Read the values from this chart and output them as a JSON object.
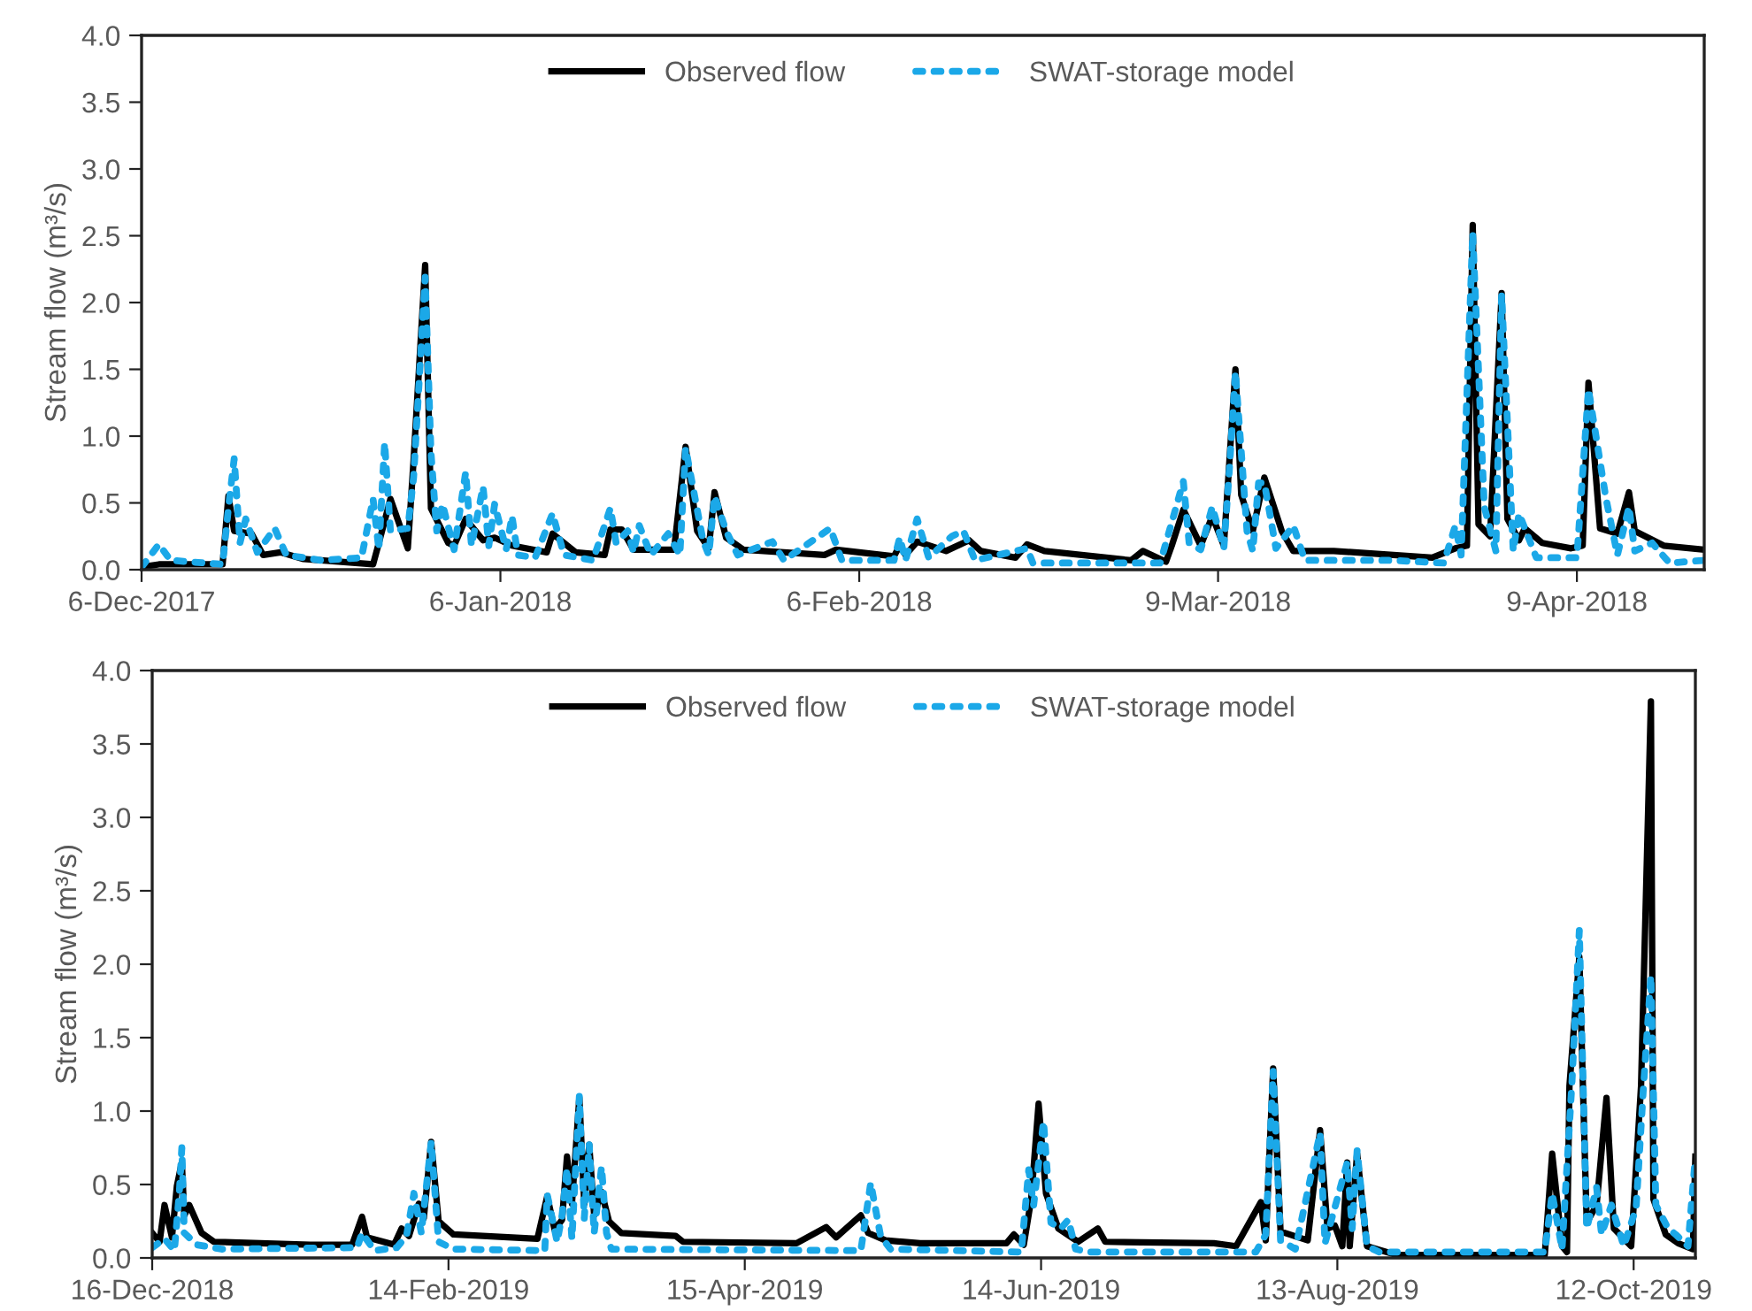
{
  "chart_data": [
    {
      "type": "line",
      "ylabel": "Stream flow (m³/s)",
      "legend": "top",
      "grid": false,
      "xlim": [
        "2017-12-06",
        "2018-04-20"
      ],
      "xticks": [
        {
          "value": "2017-12-06",
          "label": "6-Dec-2017"
        },
        {
          "value": "2018-01-06",
          "label": "6-Jan-2018"
        },
        {
          "value": "2018-02-06",
          "label": "6-Feb-2018"
        },
        {
          "value": "2018-03-09",
          "label": "9-Mar-2018"
        },
        {
          "value": "2018-04-09",
          "label": "9-Apr-2018"
        }
      ],
      "ylim": [
        0,
        4
      ],
      "yticks": [
        {
          "value": 0,
          "label": "0.0"
        },
        {
          "value": 0.5,
          "label": "0.5"
        },
        {
          "value": 1,
          "label": "1.0"
        },
        {
          "value": 1.5,
          "label": "1.5"
        },
        {
          "value": 2,
          "label": "2.0"
        },
        {
          "value": 2.5,
          "label": "2.5"
        },
        {
          "value": 3,
          "label": "3.0"
        },
        {
          "value": 3.5,
          "label": "3.5"
        },
        {
          "value": 4,
          "label": "4.0"
        }
      ],
      "series": [
        {
          "name": "Observed flow",
          "color": "#000000",
          "line_style": "solid",
          "x": [
            "2017-12-06",
            "2017-12-07T12:00",
            "2017-12-13",
            "2017-12-13T12:00",
            "2017-12-14",
            "2017-12-15T12:00",
            "2017-12-16T12:00",
            "2017-12-18",
            "2017-12-20",
            "2017-12-26",
            "2017-12-26T12:00",
            "2017-12-27T12:00",
            "2017-12-29",
            "2017-12-29T12:00",
            "2017-12-30T12:00",
            "2017-12-31",
            "2018-01-01T12:00",
            "2018-01-02",
            "2018-01-03",
            "2018-01-04T12:00",
            "2018-01-05T12:00",
            "2018-01-07",
            "2018-01-10",
            "2018-01-10T12:00",
            "2018-01-12T12:00",
            "2018-01-15",
            "2018-01-15T12:00",
            "2018-01-16T12:00",
            "2018-01-17T12:00",
            "2018-01-21",
            "2018-01-22",
            "2018-01-23",
            "2018-01-24",
            "2018-01-24T12:00",
            "2018-01-25T12:00",
            "2018-01-27",
            "2018-02-03",
            "2018-02-04",
            "2018-02-09",
            "2018-02-09T12:00",
            "2018-02-10",
            "2018-02-11",
            "2018-02-13T12:00",
            "2018-02-15T12:00",
            "2018-02-16T12:00",
            "2018-02-19T12:00",
            "2018-02-20T12:00",
            "2018-02-22",
            "2018-03-01T12:00",
            "2018-03-02T12:00",
            "2018-03-04T12:00",
            "2018-03-05",
            "2018-03-06",
            "2018-03-07T12:00",
            "2018-03-08T12:00",
            "2018-03-09T12:00",
            "2018-03-10T12:00",
            "2018-03-11",
            "2018-03-12",
            "2018-03-12T12:00",
            "2018-03-13",
            "2018-03-14T12:00",
            "2018-03-15T12:00",
            "2018-03-19",
            "2018-03-27T12:00",
            "2018-03-29T12:00",
            "2018-03-30T12:00",
            "2018-03-31",
            "2018-03-31T12:00",
            "2018-04-01T12:00",
            "2018-04-02T12:00",
            "2018-04-03",
            "2018-04-04",
            "2018-04-04T12:00",
            "2018-04-06",
            "2018-04-08T12:00",
            "2018-04-09T12:00",
            "2018-04-10",
            "2018-04-11",
            "2018-04-12T12:00",
            "2018-04-13T12:00",
            "2018-04-14",
            "2018-04-16T12:00",
            "2018-04-20"
          ],
          "values": [
            0.02,
            0.04,
            0.04,
            0.55,
            0.29,
            0.27,
            0.11,
            0.13,
            0.08,
            0.04,
            0.2,
            0.53,
            0.16,
            0.82,
            2.28,
            0.46,
            0.2,
            0.18,
            0.38,
            0.22,
            0.24,
            0.18,
            0.13,
            0.27,
            0.13,
            0.11,
            0.3,
            0.3,
            0.15,
            0.15,
            0.92,
            0.29,
            0.16,
            0.58,
            0.24,
            0.15,
            0.11,
            0.15,
            0.1,
            0.18,
            0.11,
            0.21,
            0.14,
            0.22,
            0.14,
            0.09,
            0.19,
            0.14,
            0.07,
            0.14,
            0.06,
            0.18,
            0.45,
            0.18,
            0.4,
            0.18,
            1.5,
            0.56,
            0.29,
            0.49,
            0.69,
            0.29,
            0.14,
            0.14,
            0.09,
            0.16,
            0.18,
            2.58,
            0.34,
            0.25,
            2.07,
            0.38,
            0.22,
            0.31,
            0.2,
            0.16,
            0.18,
            1.4,
            0.31,
            0.27,
            0.58,
            0.29,
            0.18,
            0.15
          ]
        },
        {
          "name": "SWAT-storage model",
          "color": "#1ba8e8",
          "line_style": "dotted",
          "x": [
            "2017-12-06",
            "2017-12-07T12:00",
            "2017-12-08T12:00",
            "2017-12-13",
            "2017-12-13T12:00",
            "2017-12-14",
            "2017-12-14T12:00",
            "2017-12-15",
            "2017-12-16",
            "2017-12-17T12:00",
            "2017-12-18T12:00",
            "2017-12-21T12:00",
            "2017-12-25",
            "2017-12-26",
            "2017-12-26T12:00",
            "2017-12-27",
            "2017-12-27T12:00",
            "2017-12-29",
            "2017-12-29T12:00",
            "2017-12-30T12:00",
            "2017-12-31",
            "2017-12-31T12:00",
            "2018-01-01",
            "2018-01-02",
            "2018-01-03",
            "2018-01-03T12:00",
            "2018-01-04T12:00",
            "2018-01-05",
            "2018-01-05T12:00",
            "2018-01-06T12:00",
            "2018-01-07",
            "2018-01-07T12:00",
            "2018-01-09",
            "2018-01-10T12:00",
            "2018-01-11T12:00",
            "2018-01-14",
            "2018-01-15T12:00",
            "2018-01-16",
            "2018-01-17",
            "2018-01-17T12:00",
            "2018-01-18",
            "2018-01-19",
            "2018-01-20T12:00",
            "2018-01-21T12:00",
            "2018-01-22",
            "2018-01-23T12:00",
            "2018-01-24",
            "2018-01-24T12:00",
            "2018-01-25T12:00",
            "2018-01-26T12:00",
            "2018-01-29T12:00",
            "2018-01-30T12:00",
            "2018-02-03T12:00",
            "2018-02-04T12:00",
            "2018-02-09",
            "2018-02-09T12:00",
            "2018-02-10",
            "2018-02-11",
            "2018-02-12",
            "2018-02-14",
            "2018-02-15",
            "2018-02-16",
            "2018-02-20T12:00",
            "2018-02-21",
            "2018-03-04",
            "2018-03-06",
            "2018-03-06T12:00",
            "2018-03-07T12:00",
            "2018-03-08T12:00",
            "2018-03-09T12:00",
            "2018-03-10",
            "2018-03-10T12:00",
            "2018-03-11T12:00",
            "2018-03-12",
            "2018-03-12T12:00",
            "2018-03-13",
            "2018-03-14",
            "2018-03-15T12:00",
            "2018-03-16T12:00",
            "2018-03-24",
            "2018-03-28T12:00",
            "2018-03-29T12:00",
            "2018-03-30",
            "2018-03-31",
            "2018-04-01",
            "2018-04-02",
            "2018-04-02T12:00",
            "2018-04-03T12:00",
            "2018-04-04",
            "2018-04-05T12:00",
            "2018-04-09",
            "2018-04-10",
            "2018-04-11T12:00",
            "2018-04-12T12:00",
            "2018-04-13T12:00",
            "2018-04-14",
            "2018-04-15T12:00",
            "2018-04-17",
            "2018-04-20"
          ],
          "values": [
            0.02,
            0.19,
            0.07,
            0.04,
            0.46,
            0.83,
            0.2,
            0.38,
            0.13,
            0.31,
            0.11,
            0.07,
            0.09,
            0.53,
            0.15,
            0.95,
            0.29,
            0.31,
            0.69,
            2.19,
            0.88,
            0.29,
            0.49,
            0.15,
            0.73,
            0.18,
            0.62,
            0.18,
            0.49,
            0.15,
            0.4,
            0.11,
            0.09,
            0.42,
            0.11,
            0.07,
            0.46,
            0.2,
            0.29,
            0.13,
            0.33,
            0.11,
            0.27,
            0.11,
            0.91,
            0.22,
            0.11,
            0.55,
            0.29,
            0.11,
            0.21,
            0.07,
            0.31,
            0.07,
            0.07,
            0.24,
            0.07,
            0.38,
            0.09,
            0.25,
            0.29,
            0.07,
            0.16,
            0.05,
            0.05,
            0.66,
            0.2,
            0.15,
            0.47,
            0.16,
            0.78,
            1.48,
            0.29,
            0.14,
            0.65,
            0.65,
            0.16,
            0.33,
            0.07,
            0.07,
            0.05,
            0.33,
            0.11,
            2.52,
            0.47,
            0.14,
            2.06,
            0.14,
            0.42,
            0.09,
            0.09,
            1.35,
            0.54,
            0.11,
            0.47,
            0.14,
            0.2,
            0.05,
            0.07
          ]
        }
      ]
    },
    {
      "type": "line",
      "ylabel": "Stream flow (m³/s)",
      "legend": "top",
      "grid": false,
      "xlim": [
        "2018-12-16",
        "2019-10-24T12:00"
      ],
      "xticks": [
        {
          "value": "2018-12-16",
          "label": "16-Dec-2018"
        },
        {
          "value": "2019-02-14",
          "label": "14-Feb-2019"
        },
        {
          "value": "2019-04-15",
          "label": "15-Apr-2019"
        },
        {
          "value": "2019-06-14",
          "label": "14-Jun-2019"
        },
        {
          "value": "2019-08-13",
          "label": "13-Aug-2019"
        },
        {
          "value": "2019-10-12",
          "label": "12-Oct-2019"
        }
      ],
      "ylim": [
        0,
        4
      ],
      "yticks": [
        {
          "value": 0,
          "label": "0.0"
        },
        {
          "value": 0.5,
          "label": "0.5"
        },
        {
          "value": 1,
          "label": "1.0"
        },
        {
          "value": 1.5,
          "label": "1.5"
        },
        {
          "value": 2,
          "label": "2.0"
        },
        {
          "value": 2.5,
          "label": "2.5"
        },
        {
          "value": 3,
          "label": "3.0"
        },
        {
          "value": 3.5,
          "label": "3.5"
        },
        {
          "value": 4,
          "label": "4.0"
        }
      ],
      "series": [
        {
          "name": "Observed flow",
          "color": "#000000",
          "line_style": "solid",
          "x": [
            "2018-12-16",
            "2018-12-17T12:00",
            "2018-12-18T12:00",
            "2018-12-20",
            "2018-12-21",
            "2018-12-22",
            "2018-12-22T12:00",
            "2018-12-23T12:00",
            "2018-12-26",
            "2018-12-28T12:00",
            "2019-01-17",
            "2019-01-25T12:00",
            "2019-01-27T12:00",
            "2019-01-28T12:00",
            "2019-02-03",
            "2019-02-04T12:00",
            "2019-02-06",
            "2019-02-08",
            "2019-02-09",
            "2019-02-10T12:00",
            "2019-02-12",
            "2019-02-15",
            "2019-03-04",
            "2019-03-06",
            "2019-03-07T12:00",
            "2019-03-09",
            "2019-03-10",
            "2019-03-11",
            "2019-03-12T12:00",
            "2019-03-13T12:00",
            "2019-03-14T12:00",
            "2019-03-15T12:00",
            "2019-03-17",
            "2019-03-18T12:00",
            "2019-03-21",
            "2019-04-01",
            "2019-04-02T12:00",
            "2019-04-25T12:00",
            "2019-05-01T12:00",
            "2019-05-03T12:00",
            "2019-05-08T12:00",
            "2019-05-10",
            "2019-05-13T12:00",
            "2019-05-20T12:00",
            "2019-06-07",
            "2019-06-08T12:00",
            "2019-06-10T12:00",
            "2019-06-12",
            "2019-06-13T12:00",
            "2019-06-15",
            "2019-06-17T12:00",
            "2019-06-21T12:00",
            "2019-06-25T12:00",
            "2019-06-27",
            "2019-07-19",
            "2019-07-23T12:00",
            "2019-07-28T12:00",
            "2019-07-29T12:00",
            "2019-07-31",
            "2019-08-01T12:00",
            "2019-08-07",
            "2019-08-09T12:00",
            "2019-08-11",
            "2019-08-12T12:00",
            "2019-08-14",
            "2019-08-15",
            "2019-08-15T12:00",
            "2019-08-17",
            "2019-08-19",
            "2019-08-25",
            "2019-09-24",
            "2019-09-25T12:00",
            "2019-09-27T12:00",
            "2019-09-28T12:00",
            "2019-09-29",
            "2019-10-01",
            "2019-10-02T12:00",
            "2019-10-04T12:00",
            "2019-10-06T12:00",
            "2019-10-08",
            "2019-10-11T12:00",
            "2019-10-13T12:00",
            "2019-10-15T12:00",
            "2019-10-16",
            "2019-10-18T12:00",
            "2019-10-21",
            "2019-10-24",
            "2019-10-24T12:00"
          ],
          "values": [
            0.17,
            0.11,
            0.36,
            0.14,
            0.49,
            0.65,
            0.29,
            0.36,
            0.17,
            0.11,
            0.09,
            0.09,
            0.28,
            0.14,
            0.09,
            0.2,
            0.15,
            0.37,
            0.27,
            0.79,
            0.25,
            0.16,
            0.13,
            0.42,
            0.19,
            0.26,
            0.69,
            0.37,
            1.09,
            0.37,
            0.77,
            0.29,
            0.45,
            0.25,
            0.17,
            0.15,
            0.11,
            0.1,
            0.21,
            0.14,
            0.29,
            0.17,
            0.12,
            0.1,
            0.1,
            0.16,
            0.09,
            0.4,
            1.05,
            0.44,
            0.2,
            0.11,
            0.2,
            0.11,
            0.1,
            0.08,
            0.38,
            0.12,
            1.29,
            0.18,
            0.12,
            0.87,
            0.2,
            0.22,
            0.08,
            0.65,
            0.08,
            0.71,
            0.08,
            0.02,
            0.02,
            0.71,
            0.08,
            0.04,
            1.17,
            2.05,
            0.24,
            0.36,
            1.09,
            0.2,
            0.08,
            1.17,
            3.79,
            0.4,
            0.16,
            0.1,
            0.06,
            0.69
          ]
        },
        {
          "name": "SWAT-storage model",
          "color": "#1ba8e8",
          "line_style": "dotted",
          "x": [
            "2018-12-16",
            "2018-12-18T12:00",
            "2018-12-20T12:00",
            "2018-12-21T12:00",
            "2018-12-22",
            "2018-12-22T12:00",
            "2018-12-25",
            "2018-12-30",
            "2019-01-26T12:00",
            "2019-01-27T12:00",
            "2019-01-30",
            "2019-02-03T12:00",
            "2019-02-05T12:00",
            "2019-02-07",
            "2019-02-08T12:00",
            "2019-02-10T12:00",
            "2019-02-12",
            "2019-02-15",
            "2019-03-05T12:00",
            "2019-03-06",
            "2019-03-08",
            "2019-03-09",
            "2019-03-10",
            "2019-03-11",
            "2019-03-12T12:00",
            "2019-03-13T12:00",
            "2019-03-14T12:00",
            "2019-03-15T12:00",
            "2019-03-17",
            "2019-03-18",
            "2019-03-19",
            "2019-05-08T12:00",
            "2019-05-10T12:00",
            "2019-05-12T12:00",
            "2019-05-14T12:00",
            "2019-06-10",
            "2019-06-11T12:00",
            "2019-06-12T12:00",
            "2019-06-14T12:00",
            "2019-06-16",
            "2019-06-18",
            "2019-06-19T12:00",
            "2019-06-21",
            "2019-06-24",
            "2019-07-27T12:00",
            "2019-07-29T12:00",
            "2019-07-31",
            "2019-08-01T12:00",
            "2019-08-04T12:00",
            "2019-08-09T12:00",
            "2019-08-10T12:00",
            "2019-08-15",
            "2019-08-16",
            "2019-08-17",
            "2019-08-19",
            "2019-08-21T12:00",
            "2019-09-24",
            "2019-09-25T12:00",
            "2019-09-27T12:00",
            "2019-09-29T12:00",
            "2019-10-01",
            "2019-10-02T12:00",
            "2019-10-04T12:00",
            "2019-10-05T12:00",
            "2019-10-07T12:00",
            "2019-10-10",
            "2019-10-12T12:00",
            "2019-10-14",
            "2019-10-15T12:00",
            "2019-10-16T12:00",
            "2019-10-19",
            "2019-10-20T12:00",
            "2019-10-23",
            "2019-10-24T12:00"
          ],
          "values": [
            0.07,
            0.13,
            0.05,
            0.45,
            0.75,
            0.17,
            0.09,
            0.06,
            0.07,
            0.17,
            0.05,
            0.07,
            0.15,
            0.44,
            0.17,
            0.79,
            0.11,
            0.06,
            0.05,
            0.43,
            0.11,
            0.29,
            0.61,
            0.13,
            1.1,
            0.27,
            0.77,
            0.17,
            0.62,
            0.17,
            0.06,
            0.05,
            0.51,
            0.15,
            0.06,
            0.04,
            0.6,
            0.36,
            0.93,
            0.24,
            0.2,
            0.26,
            0.06,
            0.04,
            0.04,
            0.16,
            1.27,
            0.12,
            0.06,
            0.85,
            0.1,
            0.65,
            0.2,
            0.73,
            0.08,
            0.04,
            0.04,
            0.44,
            0.06,
            1.19,
            2.23,
            0.2,
            0.48,
            0.16,
            0.36,
            0.08,
            0.34,
            1.17,
            1.92,
            0.36,
            0.2,
            0.16,
            0.08,
            0.69
          ]
        }
      ]
    }
  ]
}
